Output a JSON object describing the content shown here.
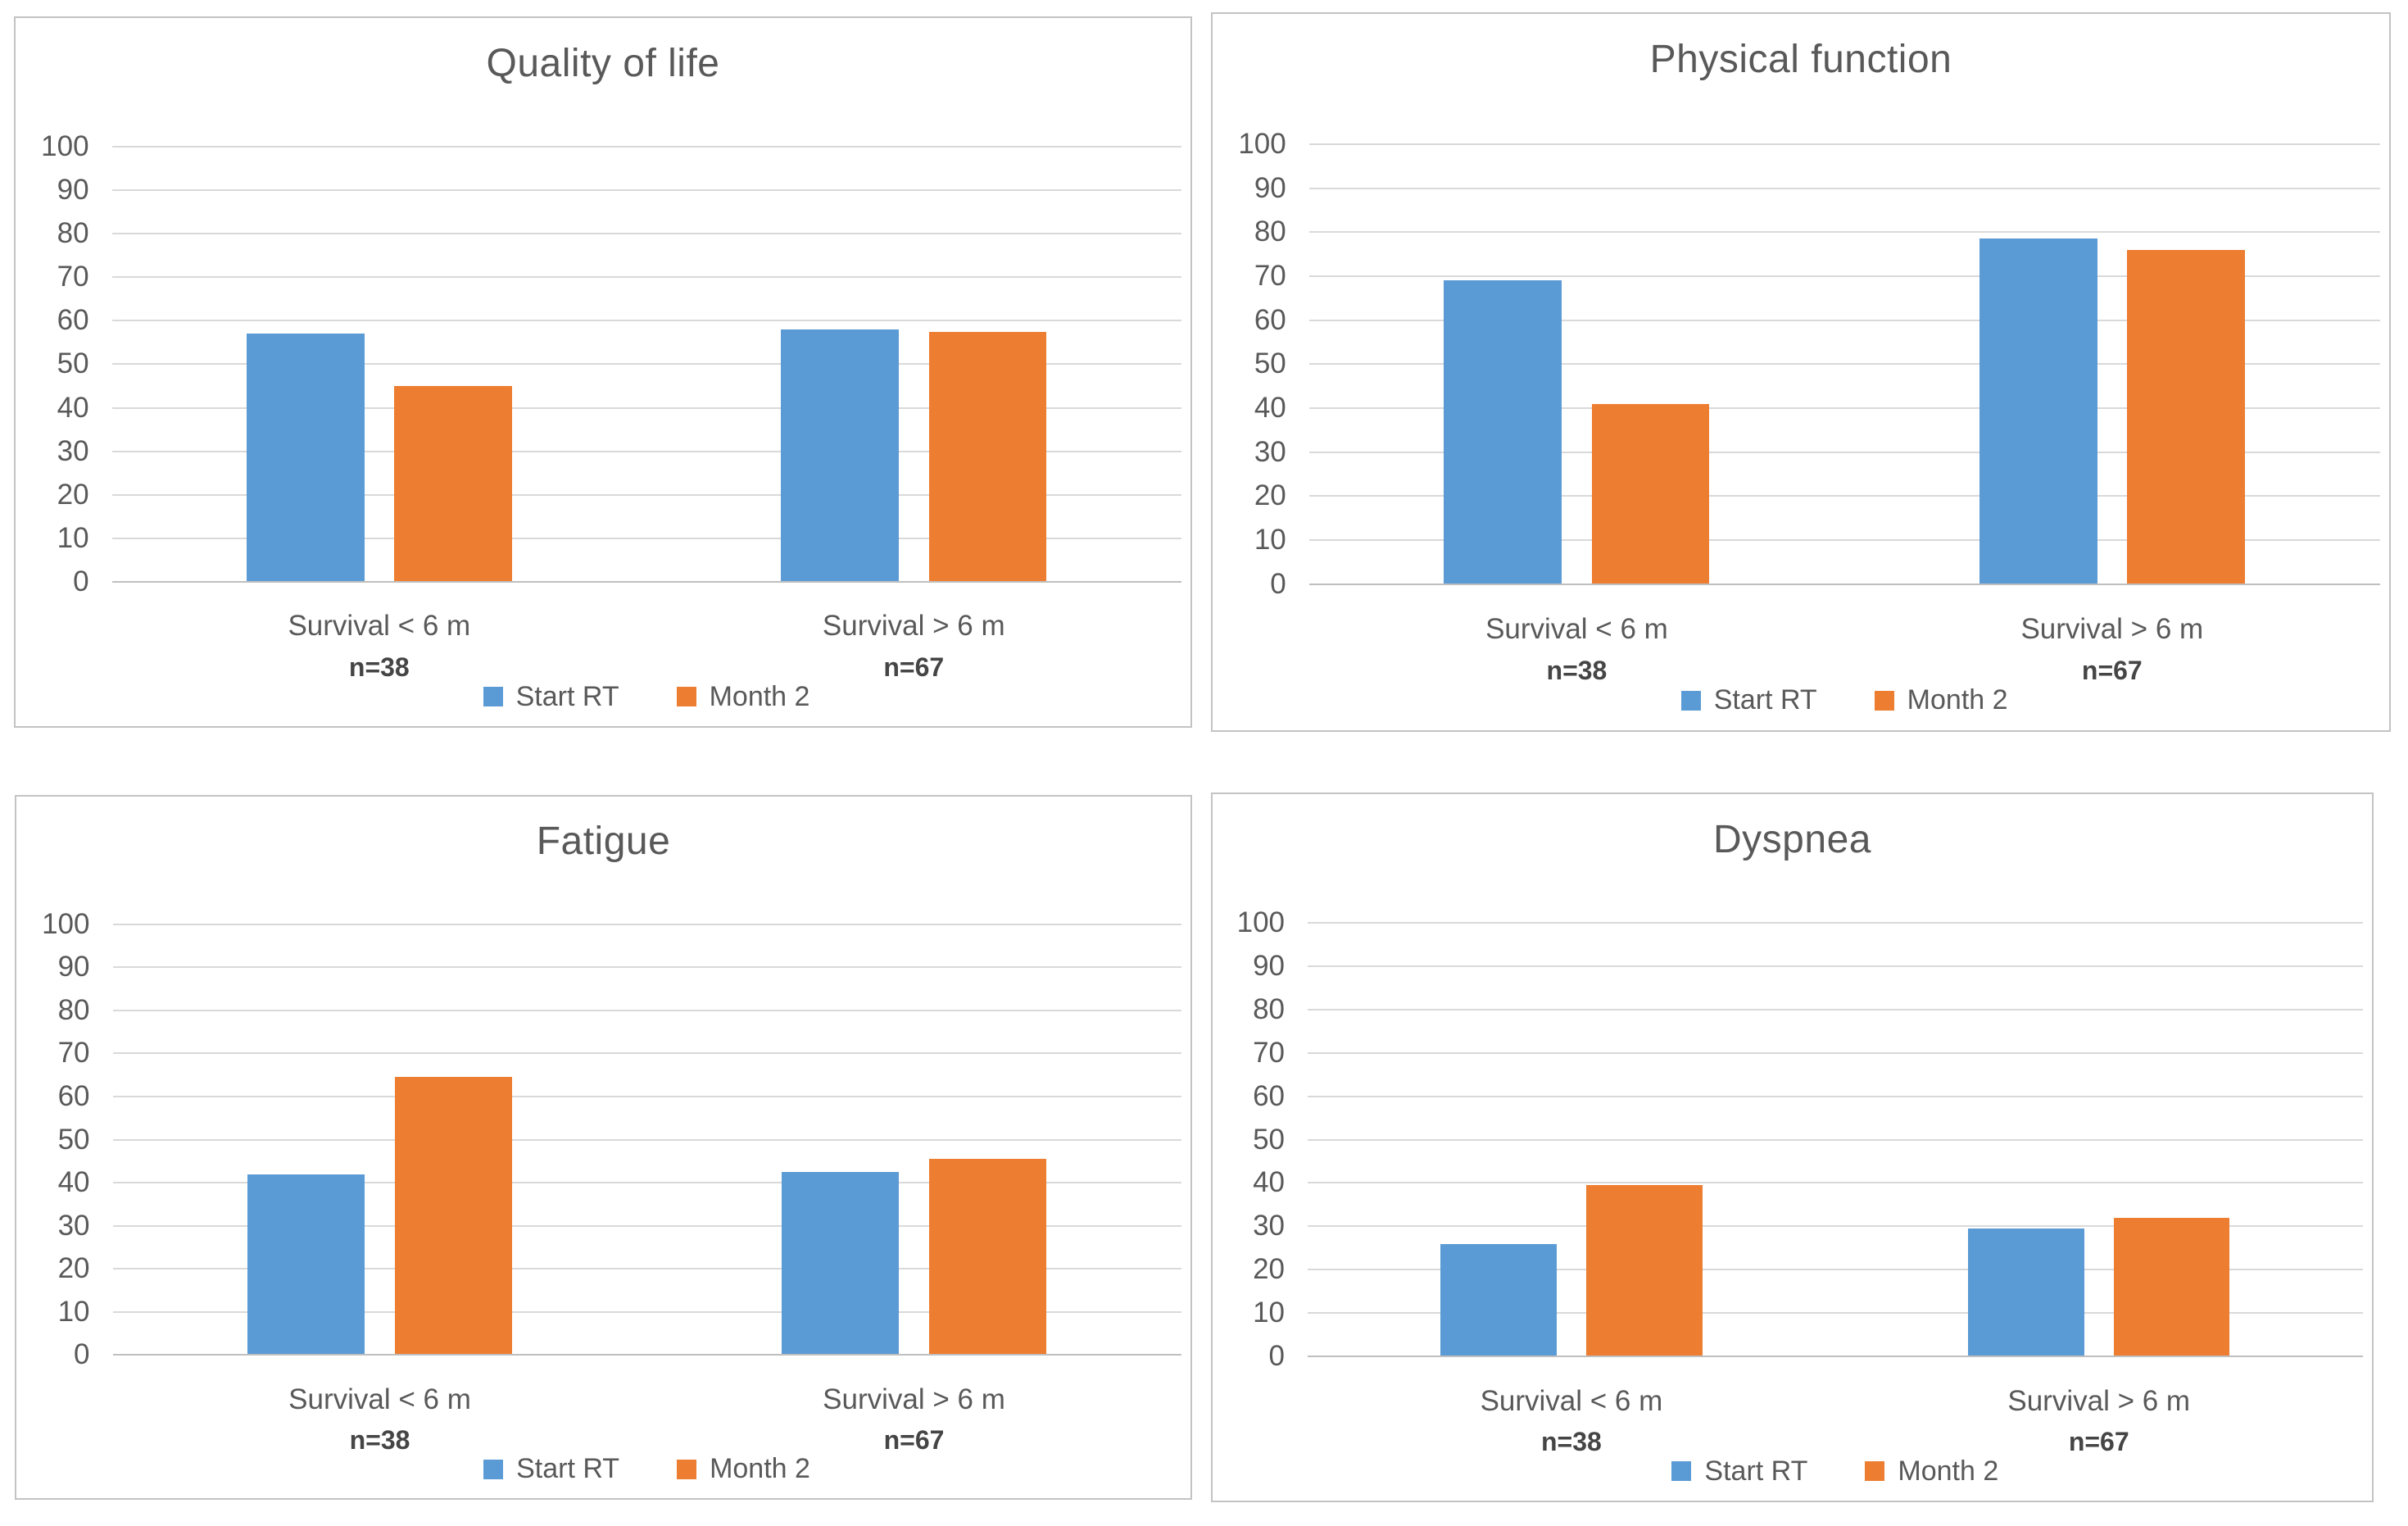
{
  "colors": {
    "series1": "#5B9BD5",
    "series2": "#ED7D31",
    "gridline": "#D9D9D9",
    "axis_line": "#BFBFBF",
    "text": "#595959",
    "panel_border": "#C3C3C3",
    "background": "#FFFFFF"
  },
  "chart_data": [
    {
      "type": "bar",
      "title": "Quality of life",
      "categories": [
        "Survival < 6 m",
        "Survival > 6 m"
      ],
      "category_sublabels": [
        "n=38",
        "n=67"
      ],
      "series": [
        {
          "name": "Start RT",
          "color": "#5B9BD5",
          "values": [
            57,
            58
          ]
        },
        {
          "name": "Month 2",
          "color": "#ED7D31",
          "values": [
            45,
            57.5
          ]
        }
      ],
      "ylim": [
        0,
        100
      ],
      "ytick_step": 10,
      "grid": true,
      "legend_position": "bottom"
    },
    {
      "type": "bar",
      "title": "Physical function",
      "categories": [
        "Survival < 6 m",
        "Survival > 6 m"
      ],
      "category_sublabels": [
        "n=38",
        "n=67"
      ],
      "series": [
        {
          "name": "Start RT",
          "color": "#5B9BD5",
          "values": [
            69,
            78.5
          ]
        },
        {
          "name": "Month 2",
          "color": "#ED7D31",
          "values": [
            41,
            76
          ]
        }
      ],
      "ylim": [
        0,
        100
      ],
      "ytick_step": 10,
      "grid": true,
      "legend_position": "bottom"
    },
    {
      "type": "bar",
      "title": "Fatigue",
      "categories": [
        "Survival < 6 m",
        "Survival > 6 m"
      ],
      "category_sublabels": [
        "n=38",
        "n=67"
      ],
      "series": [
        {
          "name": "Start RT",
          "color": "#5B9BD5",
          "values": [
            42,
            42.5
          ]
        },
        {
          "name": "Month 2",
          "color": "#ED7D31",
          "values": [
            64.5,
            45.5
          ]
        }
      ],
      "ylim": [
        0,
        100
      ],
      "ytick_step": 10,
      "grid": true,
      "legend_position": "bottom"
    },
    {
      "type": "bar",
      "title": "Dyspnea",
      "categories": [
        "Survival < 6 m",
        "Survival > 6 m"
      ],
      "category_sublabels": [
        "n=38",
        "n=67"
      ],
      "series": [
        {
          "name": "Start RT",
          "color": "#5B9BD5",
          "values": [
            26,
            29.5
          ]
        },
        {
          "name": "Month 2",
          "color": "#ED7D31",
          "values": [
            39.5,
            32
          ]
        }
      ],
      "ylim": [
        0,
        100
      ],
      "ytick_step": 10,
      "grid": true,
      "legend_position": "bottom"
    }
  ]
}
